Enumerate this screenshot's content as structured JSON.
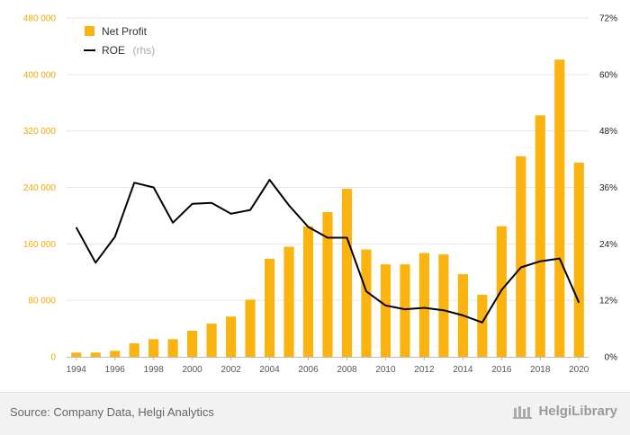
{
  "chart_data": {
    "type": "bar+line",
    "categories": [
      "1994",
      "1995",
      "1996",
      "1997",
      "1998",
      "1999",
      "2000",
      "2001",
      "2002",
      "2003",
      "2004",
      "2005",
      "2006",
      "2007",
      "2008",
      "2009",
      "2010",
      "2011",
      "2012",
      "2013",
      "2014",
      "2015",
      "2016",
      "2017",
      "2018",
      "2019",
      "2020"
    ],
    "x_tick_labels": [
      "1994",
      "1996",
      "1998",
      "2000",
      "2002",
      "2004",
      "2006",
      "2008",
      "2010",
      "2012",
      "2014",
      "2016",
      "2018",
      "2020"
    ],
    "series": [
      {
        "name": "Net Profit",
        "type": "bar",
        "axis": "left",
        "color": "#fbb40f",
        "values": [
          6000,
          6000,
          8500,
          19000,
          25000,
          25000,
          37000,
          47000,
          57000,
          81000,
          139000,
          156000,
          185000,
          205000,
          238000,
          152000,
          131000,
          131000,
          147000,
          145000,
          117000,
          88000,
          185000,
          284000,
          342000,
          421000,
          275000
        ]
      },
      {
        "name": "ROE",
        "name_suffix": "(rhs)",
        "type": "line",
        "axis": "right",
        "color": "#000000",
        "values": [
          27.5,
          20,
          25.5,
          37,
          36,
          28.5,
          32.5,
          32.7,
          30.4,
          31.2,
          37.6,
          32.2,
          27.6,
          25.3,
          25.3,
          13.9,
          10.9,
          10.1,
          10.4,
          9.9,
          8.8,
          7.3,
          14.2,
          19,
          20.3,
          20.9,
          11.5
        ]
      }
    ],
    "y_left": {
      "ticks": [
        "0",
        "80 000",
        "160 000",
        "240 000",
        "320 000",
        "400 000",
        "480 000"
      ],
      "min": 0,
      "max": 480000
    },
    "y_right": {
      "ticks": [
        "0%",
        "12%",
        "24%",
        "36%",
        "48%",
        "60%",
        "72%"
      ],
      "min": 0,
      "max": 72
    },
    "grid": true,
    "legend_position": "top-left"
  },
  "footer": {
    "source": "Source: Company Data, Helgi Analytics",
    "brand": "HelgiLibrary"
  }
}
